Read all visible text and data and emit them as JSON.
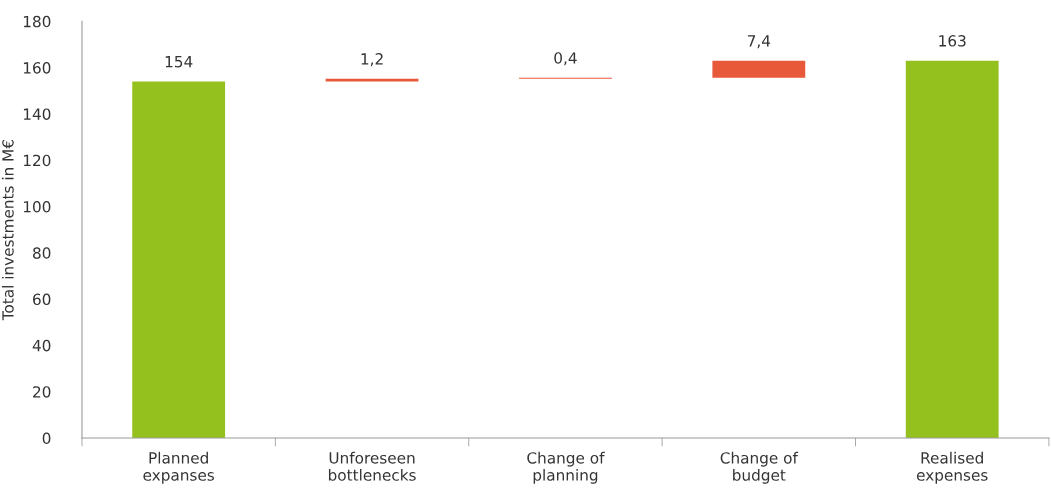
{
  "chart_data": {
    "type": "bar",
    "ylabel": "Total investments in M€",
    "categories": [
      "Planned\nexpanses",
      "Unforeseen\nbottlenecks",
      "Change of\nplanning",
      "Change of\nbudget",
      "Realised\nexpenses"
    ],
    "values": [
      154,
      1.2,
      0.4,
      7.4,
      163
    ],
    "base": [
      0,
      154,
      155.2,
      155.6,
      0
    ],
    "colors": [
      "#95c11f",
      "#e8593a",
      "#e8593a",
      "#e8593a",
      "#95c11f"
    ],
    "value_labels": [
      "154",
      "1,2",
      "0,4",
      "7,4",
      "163"
    ],
    "ylim": [
      0,
      180
    ],
    "yticks": [
      0,
      20,
      40,
      60,
      80,
      100,
      120,
      140,
      160,
      180
    ],
    "grid": false
  }
}
